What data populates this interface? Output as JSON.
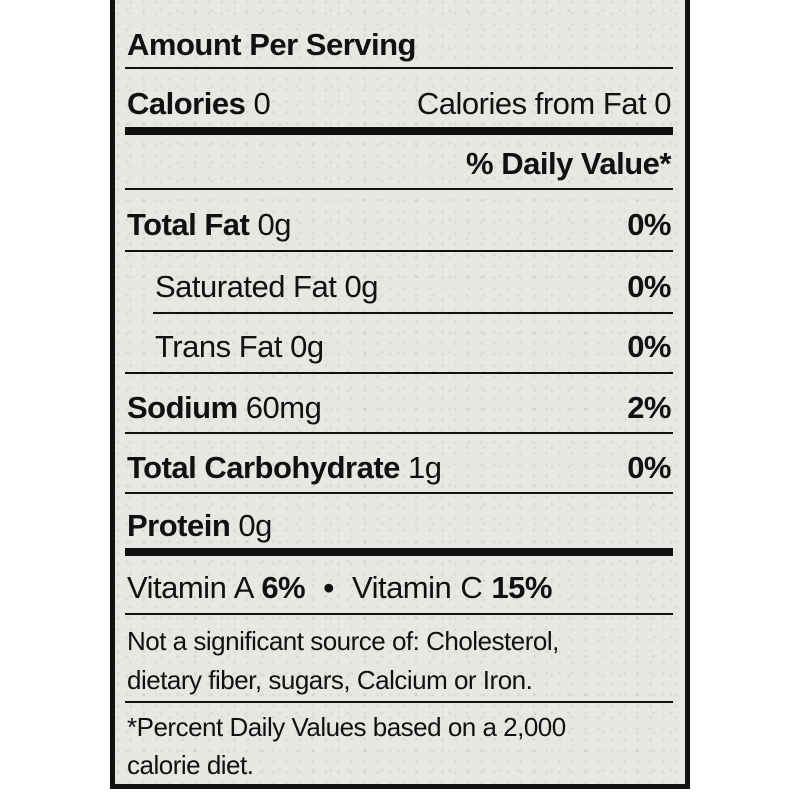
{
  "header": "Amount Per Serving",
  "calories": {
    "label": "Calories",
    "value": "0",
    "from_fat_label": "Calories from Fat",
    "from_fat_value": "0"
  },
  "dv_header": "% Daily Value*",
  "rows": [
    {
      "name": "Total Fat",
      "amount": "0g",
      "dv": "0%",
      "bold": true
    },
    {
      "name": "Saturated Fat",
      "amount": "0g",
      "dv": "0%",
      "bold": false
    },
    {
      "name": "Trans Fat",
      "amount": "0g",
      "dv": "0%",
      "bold": false
    },
    {
      "name": "Sodium",
      "amount": "60mg",
      "dv": "2%",
      "bold": true
    },
    {
      "name": "Total Carbohydrate",
      "amount": "1g",
      "dv": "0%",
      "bold": true
    },
    {
      "name": "Protein",
      "amount": "0g",
      "dv": "",
      "bold": true
    }
  ],
  "vitamins": {
    "a_label": "Vitamin A",
    "a_value": "6%",
    "separator": "•",
    "c_label": "Vitamin C",
    "c_value": "15%"
  },
  "not_significant": [
    "Not a significant source of: Cholesterol,",
    "dietary fiber, sugars, Calcium or Iron."
  ],
  "footnote": [
    "*Percent Daily Values based on a 2,000",
    "calorie diet."
  ]
}
